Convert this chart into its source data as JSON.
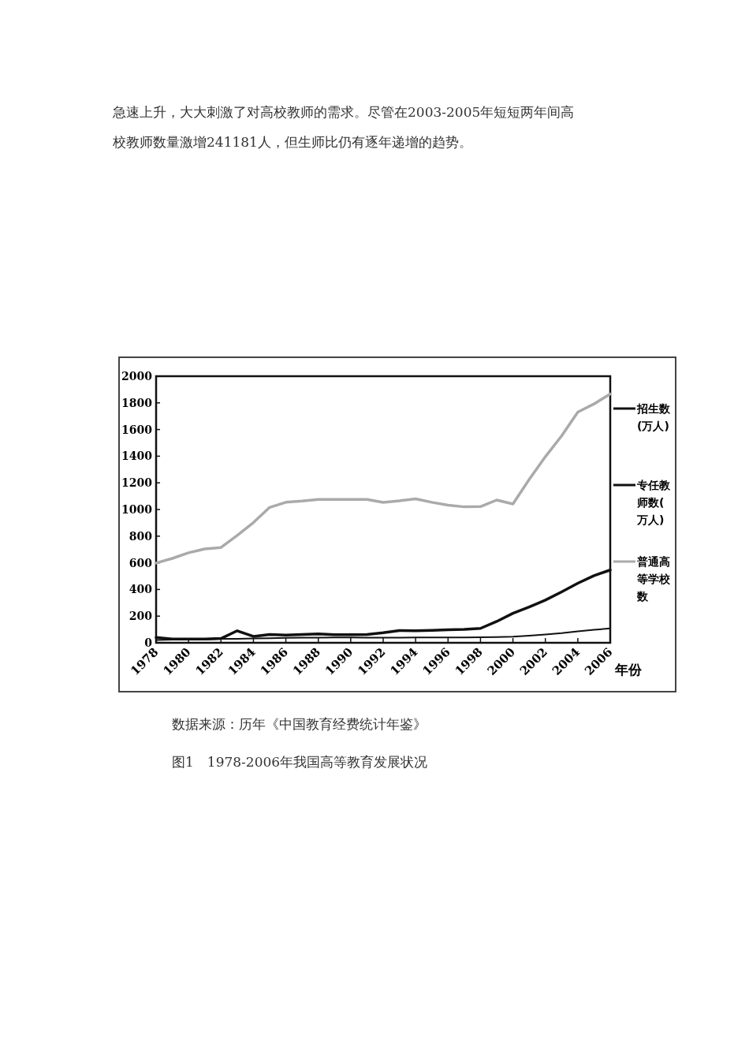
{
  "chart_data": {
    "type": "line",
    "title": "图1　1978-2006年我国高等教育发展状况",
    "xlabel": "年份",
    "annotations": [
      "急速上升，大大刺激了对高校教师的需求。尽管在2003-2005年短短两年间高",
      "校教师数量激增241181人，但生师比仍有逐年递增的趋势。",
      "数据来源：历年《中国教育经费统计年鉴》"
    ],
    "x": [
      1978,
      1979,
      1980,
      1981,
      1982,
      1983,
      1984,
      1985,
      1986,
      1987,
      1988,
      1989,
      1990,
      1991,
      1992,
      1993,
      1994,
      1995,
      1996,
      1997,
      1998,
      1999,
      2000,
      2001,
      2002,
      2003,
      2004,
      2005,
      2006
    ],
    "series": [
      {
        "name": "招生数(万人)",
        "color": "#111111",
        "values": [
          40,
          28,
          28,
          28,
          32,
          90,
          48,
          62,
          57,
          62,
          67,
          60,
          61,
          62,
          75,
          92,
          90,
          93,
          97,
          100,
          108,
          160,
          221,
          268,
          320,
          382,
          447,
          504,
          546
        ]
      },
      {
        "name": "专任教师数(万人)",
        "color": "#111111",
        "values": [
          21,
          24,
          25,
          25,
          29,
          30,
          32,
          34,
          37,
          38,
          39,
          40,
          40,
          39,
          39,
          39,
          40,
          40,
          40,
          40,
          41,
          43,
          46,
          53,
          62,
          72,
          86,
          97,
          108
        ]
      },
      {
        "name": "普通高等学校数",
        "color": "#aaaaaa",
        "values": [
          598,
          633,
          675,
          704,
          715,
          805,
          902,
          1016,
          1054,
          1063,
          1075,
          1075,
          1075,
          1075,
          1053,
          1065,
          1080,
          1054,
          1032,
          1020,
          1022,
          1071,
          1041,
          1225,
          1396,
          1552,
          1731,
          1792,
          1867
        ]
      }
    ],
    "xlim": [
      1978,
      2006
    ],
    "xticks": [
      1978,
      1980,
      1982,
      1984,
      1986,
      1988,
      1990,
      1992,
      1994,
      1996,
      1998,
      2000,
      2002,
      2004,
      2006
    ],
    "ylim": [
      0,
      2000
    ],
    "yticks": [
      0,
      200,
      400,
      600,
      800,
      1000,
      1200,
      1400,
      1600,
      1800,
      2000
    ],
    "legend": "right",
    "grid": false,
    "marker": "none",
    "line_style": "solid"
  }
}
